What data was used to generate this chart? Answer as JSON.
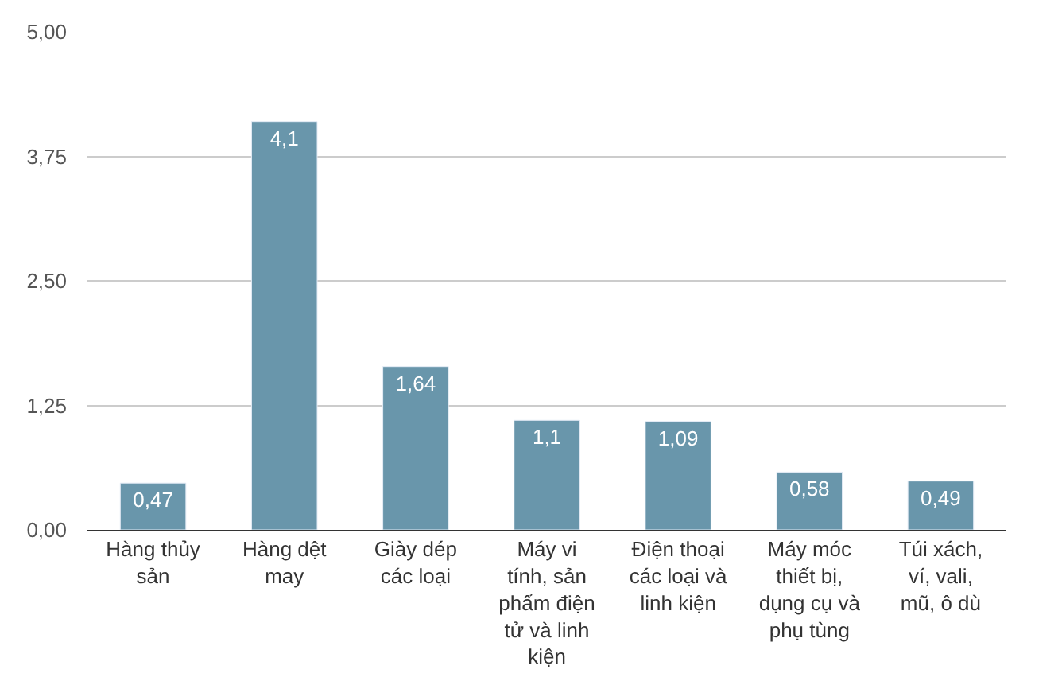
{
  "chart_data": {
    "type": "bar",
    "categories": [
      "Hàng thủy sản",
      "Hàng dệt may",
      "Giày dép các loại",
      "Máy vi tính, sản phẩm điện tử và linh kiện",
      "Điện thoại các loại và linh kiện",
      "Máy móc thiết bị, dụng cụ và phụ tùng",
      "Túi xách, ví, vali, mũ, ô dù"
    ],
    "values": [
      0.47,
      4.1,
      1.64,
      1.1,
      1.09,
      0.58,
      0.49
    ],
    "value_labels": [
      "0,47",
      "4,1",
      "1,64",
      "1,1",
      "1,09",
      "0,58",
      "0,49"
    ],
    "color": "#6996ab",
    "ylim": [
      0,
      5
    ],
    "yticks": [
      {
        "value": 0,
        "label": "0,00"
      },
      {
        "value": 1.25,
        "label": "1,25"
      },
      {
        "value": 2.5,
        "label": "2,50"
      },
      {
        "value": 3.75,
        "label": "3,75"
      },
      {
        "value": 5,
        "label": "5,00"
      }
    ],
    "grid": "y"
  }
}
